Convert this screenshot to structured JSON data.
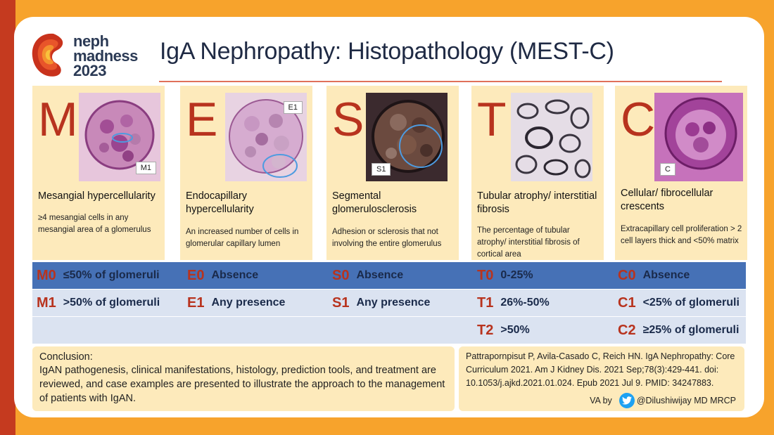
{
  "logo": {
    "line1": "neph",
    "line2": "madness",
    "line3": "2023"
  },
  "title": "IgA Nephropathy: Histopathology (MEST-C)",
  "columns": [
    {
      "letter": "M",
      "image_label": "M1",
      "title": "Mesangial hypercellularity",
      "description": "≥4 mesangial cells in any mesangial area of a glomerulus"
    },
    {
      "letter": "E",
      "image_label": "E1",
      "title": "Endocapillary hypercellularity",
      "description": "An increased number of cells in glomerular capillary lumen"
    },
    {
      "letter": "S",
      "image_label": "S1",
      "title": "Segmental glomerulosclerosis",
      "description": "Adhesion or sclerosis that not involving the entire glomerulus"
    },
    {
      "letter": "T",
      "image_label": "",
      "title": "Tubular atrophy/ interstitial fibrosis",
      "description": "The percentage of tubular atrophy/ interstitial fibrosis of cortical area"
    },
    {
      "letter": "C",
      "image_label": "C",
      "title": "Cellular/ fibrocellular crescents",
      "description": "Extracapillary cell proliferation > 2 cell layers thick and <50% matrix"
    }
  ],
  "scores": {
    "row1": [
      {
        "code": "M0",
        "value": "≤50% of glomeruli"
      },
      {
        "code": "E0",
        "value": "Absence"
      },
      {
        "code": "S0",
        "value": "Absence"
      },
      {
        "code": "T0",
        "value": "0-25%"
      },
      {
        "code": "C0",
        "value": "Absence"
      }
    ],
    "row2": [
      {
        "code": "M1",
        "value": ">50% of glomeruli"
      },
      {
        "code": "E1",
        "value": "Any presence"
      },
      {
        "code": "S1",
        "value": "Any presence"
      },
      {
        "code": "T1",
        "value": "26%-50%"
      },
      {
        "code": "C1",
        "value": "<25% of glomeruli"
      }
    ],
    "row3": [
      {
        "code": "T2",
        "value": ">50%"
      },
      {
        "code": "C2",
        "value": "≥25% of glomeruli"
      }
    ]
  },
  "conclusion": {
    "heading": "Conclusion:",
    "body": "IgAN pathogenesis, clinical manifestations, histology, prediction tools, and treatment are reviewed, and case examples are presented to illustrate the approach to the management of patients with IgAN."
  },
  "reference": {
    "text": "Pattrapornpisut P, Avila-Casado C, Reich HN. IgA Nephropathy: Core Curriculum 2021. Am J Kidney Dis. 2021 Sep;78(3):429-441. doi: 10.1053/j.ajkd.2021.01.024. Epub 2021 Jul 9. PMID: 34247883.",
    "va_by": "VA by",
    "handle": "@Dilushiwijay MD MRCP"
  },
  "colors": {
    "accent_red": "#b8331e",
    "band_blue": "#4671b6",
    "band_light": "#dbe3f1",
    "panel_cream": "#fdeabb",
    "frame_orange": "#f7a32c"
  },
  "icons": {
    "twitter": "twitter-bird-icon"
  }
}
